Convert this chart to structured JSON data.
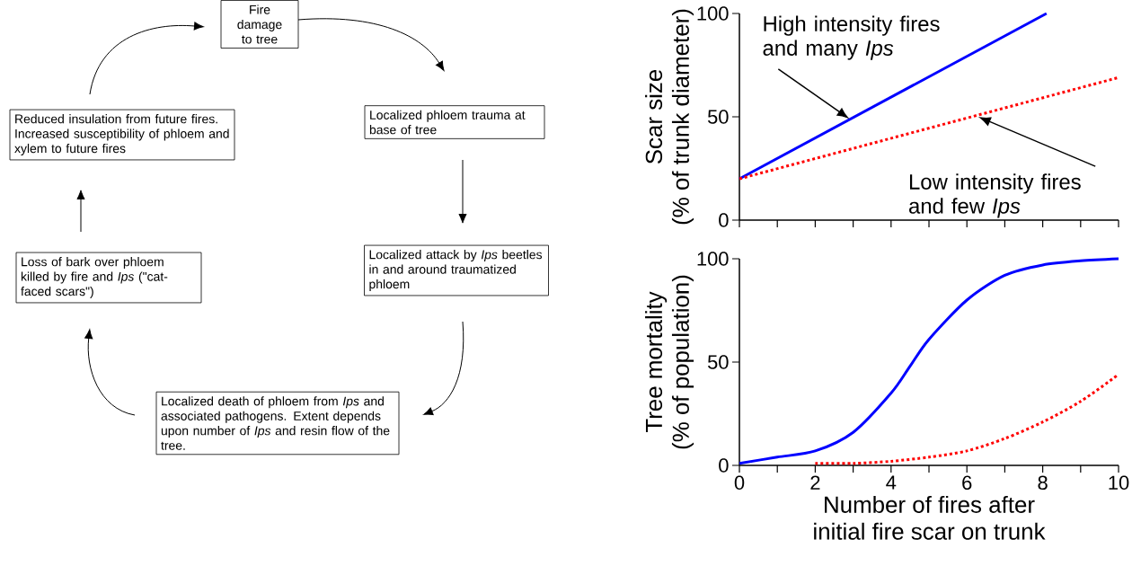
{
  "chart_data": [
    {
      "type": "other",
      "annotations": [
        "Fire damage to tree",
        "Localized phloem trauma at base of tree",
        "Localized attack by *Ips* beetles in and around traumatized phloem",
        "Localized death of phloem from *Ips* and associated pathogens. Extent depends upon number of *Ips* and resin flow of the tree.",
        "Loss of bark over phloem killed by fire and *Ips* (\"cat-faced scars\")",
        "Reduced insulation from future fires.  Increased susceptibility of phloem and xylem to future fires"
      ]
    },
    {
      "type": "line",
      "ylabel": "Scar size\n(% of trunk diameter)",
      "xlim": [
        0,
        10
      ],
      "ylim": [
        0,
        100
      ],
      "tick_labels": "y",
      "xticks": [
        0,
        {
          "value": 1,
          "label": null
        },
        2,
        {
          "value": 3,
          "label": null
        },
        4,
        {
          "value": 5,
          "label": null
        },
        6,
        {
          "value": 7,
          "label": null
        },
        8,
        {
          "value": 9,
          "label": null
        },
        10
      ],
      "yticks": [
        0,
        50,
        100
      ],
      "series": [
        {
          "x": [
            0,
            8.1
          ],
          "values": [
            20,
            100
          ],
          "color": "#0000ff",
          "line_style": "solid"
        },
        {
          "x": [
            0,
            10
          ],
          "values": [
            20,
            69
          ],
          "color": "#ff0000",
          "line_style": "dotted"
        }
      ],
      "annotations": [
        {
          "text": "High intensity fires and many *Ips*",
          "x": 2.9,
          "y": 49
        },
        {
          "text": "Low intensity fires and few *Ips*",
          "x": 6.3,
          "y": 50
        }
      ]
    },
    {
      "type": "line",
      "ylabel": "Tree mortality\n(% of population)",
      "xlabel": "Number of fires after\ninitial fire scar on trunk",
      "xlim": [
        0,
        10
      ],
      "ylim": [
        0,
        100
      ],
      "xticks": [
        0,
        {
          "value": 1,
          "label": null
        },
        2,
        {
          "value": 3,
          "label": null
        },
        4,
        {
          "value": 5,
          "label": null
        },
        6,
        {
          "value": 7,
          "label": null
        },
        8,
        {
          "value": 9,
          "label": null
        },
        10
      ],
      "yticks": [
        0,
        50,
        100
      ],
      "series": [
        {
          "x": [
            0,
            1,
            2,
            3,
            4,
            4.5,
            5,
            6,
            7,
            8,
            9,
            10
          ],
          "values": [
            1,
            4,
            7,
            16,
            35,
            48,
            61,
            80,
            92,
            97,
            99,
            100
          ],
          "color": "#0000ff",
          "line_style": "solid"
        },
        {
          "x": [
            2,
            3,
            4,
            5,
            6,
            7,
            8,
            9,
            10
          ],
          "values": [
            1,
            1,
            2,
            4,
            7,
            13,
            21,
            31,
            44
          ],
          "color": "#ff0000",
          "line_style": "dotted"
        }
      ]
    }
  ]
}
